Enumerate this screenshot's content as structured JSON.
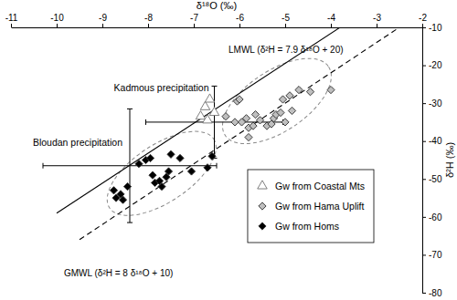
{
  "chart_data": {
    "type": "scatter",
    "x_label": "δ¹⁸O (‰)",
    "y_label": "δ²H (‰)",
    "xlim": [
      -11,
      -2
    ],
    "xticks": [
      -11,
      -10,
      -9,
      -8,
      -7,
      -6,
      -5,
      -4,
      -3,
      -2
    ],
    "ylim": [
      -80,
      -10
    ],
    "yticks": [
      -80,
      -70,
      -60,
      -50,
      -40,
      -30,
      -20,
      -10
    ],
    "grid": false,
    "legend": "lower right",
    "series": [
      {
        "name": "Gw from Coastal Mts",
        "color": "#707070",
        "marker": "triangle-open",
        "x": [
          -6.85,
          -6.75,
          -6.65,
          -6.7,
          -6.55
        ],
        "values": [
          -33.5,
          -31,
          -29,
          -34.5,
          -32.5
        ]
      },
      {
        "name": "Gw from Hama Uplift",
        "color": "#bfbfbf",
        "marker": "diamond",
        "x": [
          -6.3,
          -6.1,
          -6.05,
          -6.0,
          -5.95,
          -5.85,
          -5.8,
          -5.8,
          -5.7,
          -5.65,
          -5.55,
          -5.4,
          -5.3,
          -5.25,
          -5.2,
          -5.1,
          -5.05,
          -5.0,
          -4.9,
          -4.85,
          -4.7,
          -4.45,
          -4.0
        ],
        "values": [
          -33.5,
          -35,
          -29.5,
          -29,
          -35,
          -34,
          -36.5,
          -39,
          -36,
          -33,
          -34.5,
          -36,
          -35.5,
          -34,
          -33,
          -32.5,
          -29,
          -35,
          -28,
          -32,
          -26.5,
          -27,
          -26.5
        ]
      },
      {
        "name": "Gw from Homs",
        "color": "#000000",
        "marker": "diamond",
        "x": [
          -8.75,
          -8.7,
          -8.6,
          -8.55,
          -8.45,
          -8.2,
          -8.05,
          -7.95,
          -7.9,
          -7.85,
          -7.75,
          -7.7,
          -7.6,
          -7.55,
          -7.5,
          -7.3,
          -7.05,
          -6.7,
          -6.6
        ],
        "values": [
          -53,
          -55,
          -54,
          -55.5,
          -52,
          -46,
          -45,
          -44.5,
          -49,
          -51,
          -50.5,
          -52,
          -49.5,
          -48,
          -43.5,
          -44.5,
          -48,
          -47,
          -44
        ]
      }
    ],
    "lines": [
      {
        "name": "LMWL (δ²H = 7.9 δ¹⁸O + 20)",
        "color": "#000000",
        "line_style": "solid",
        "x": [
          -10,
          -3.8
        ],
        "values": [
          -59,
          -10.02
        ]
      },
      {
        "name": "GMWL (δ²H = 8 δ¹⁸O + 10)",
        "color": "#000000",
        "line_style": "dashed",
        "x": [
          -9.5,
          -2.5
        ],
        "values": [
          -66,
          -10
        ]
      }
    ],
    "precipitation": [
      {
        "name": "Kadmous precipitation",
        "x": -6.55,
        "y": -35,
        "x_error": 1.5,
        "y_error": 9.5
      },
      {
        "name": "Bloudan precipitation",
        "x": -8.4,
        "y": -46.5,
        "x_error": 1.9,
        "y_error": 15
      }
    ]
  }
}
